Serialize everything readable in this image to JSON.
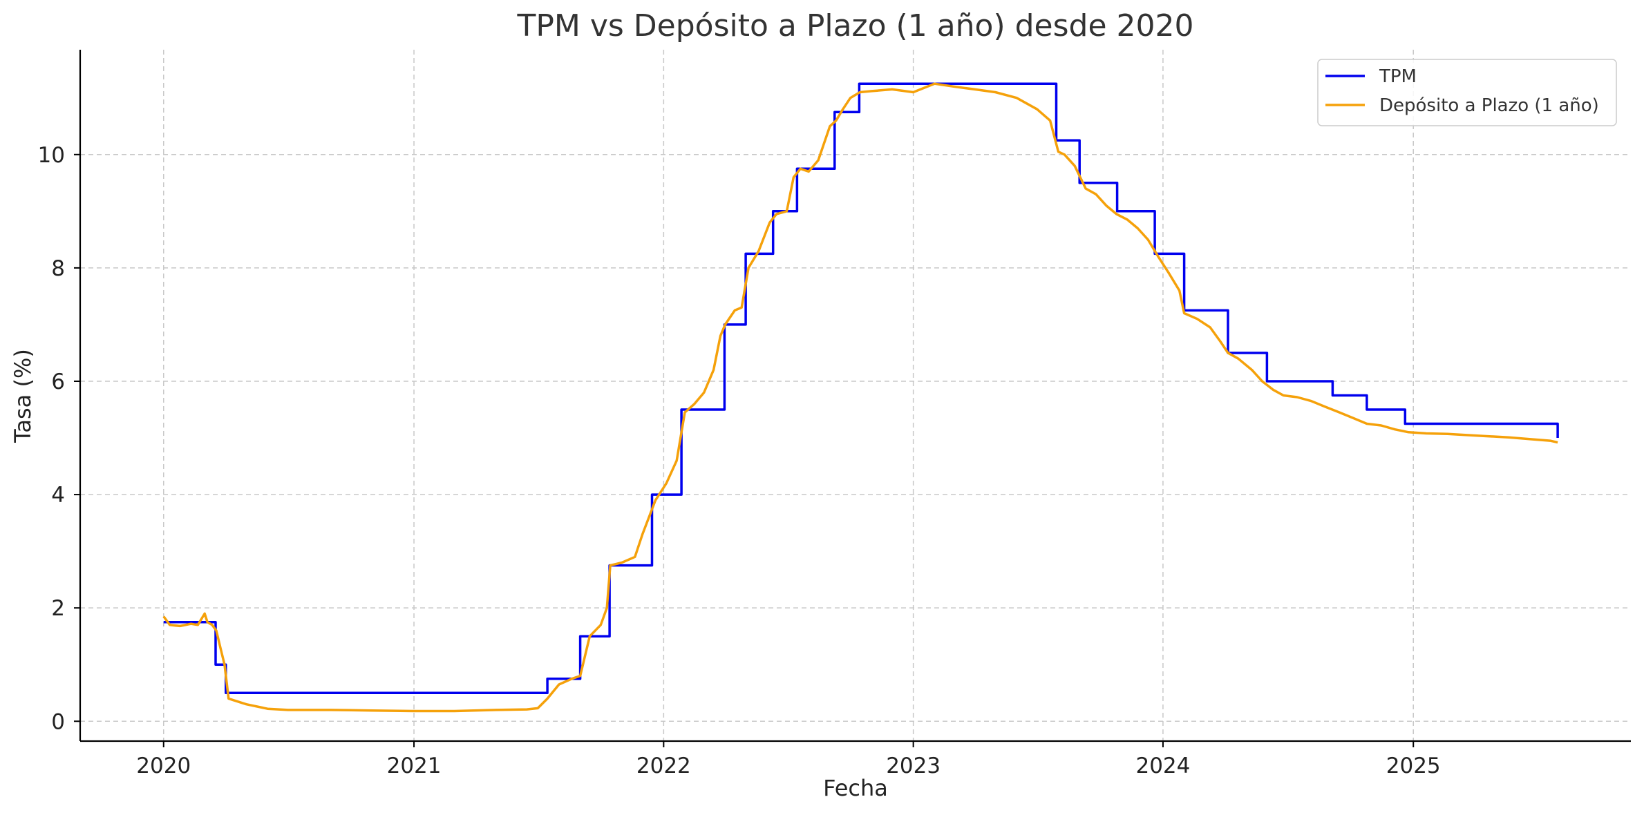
{
  "chart_data": {
    "type": "line",
    "title": "TPM vs Depósito a Plazo (1 año) desde 2020",
    "xlabel": "Fecha",
    "ylabel": "Tasa (%)",
    "xlim": [
      "2019-09-01",
      "2025-11-15"
    ],
    "ylim": [
      -0.35,
      11.85
    ],
    "x_ticks": [
      {
        "date": "2020-01-01",
        "label": "2020"
      },
      {
        "date": "2021-01-01",
        "label": "2021"
      },
      {
        "date": "2022-01-01",
        "label": "2022"
      },
      {
        "date": "2023-01-01",
        "label": "2023"
      },
      {
        "date": "2024-01-01",
        "label": "2024"
      },
      {
        "date": "2025-01-01",
        "label": "2025"
      }
    ],
    "y_ticks": [
      0,
      2,
      4,
      6,
      8,
      10
    ],
    "grid": true,
    "legend_position": "top-right",
    "colors": {
      "tpm": "#0000ee",
      "deposit": "#f5a10a"
    },
    "series": [
      {
        "name": "TPM",
        "color": "#0000ee",
        "step": true,
        "x": [
          "2020-01-01",
          "2020-03-17",
          "2020-04-01",
          "2021-07-15",
          "2021-09-01",
          "2021-10-14",
          "2021-12-15",
          "2022-01-27",
          "2022-03-31",
          "2022-05-01",
          "2022-06-10",
          "2022-07-15",
          "2022-09-08",
          "2022-10-14",
          "2023-07-29",
          "2023-09-01",
          "2023-10-26",
          "2023-12-20",
          "2024-02-01",
          "2024-04-05",
          "2024-06-01",
          "2024-09-05",
          "2024-10-25",
          "2024-12-20",
          "2025-07-31"
        ],
        "y": [
          1.75,
          1.0,
          0.5,
          0.75,
          1.5,
          2.75,
          4.0,
          5.5,
          7.0,
          8.25,
          9.0,
          9.75,
          10.75,
          11.25,
          10.25,
          9.5,
          9.0,
          8.25,
          7.25,
          6.5,
          6.0,
          5.75,
          5.5,
          5.25,
          5.0
        ]
      },
      {
        "name": "Depósito a Plazo (1 año)",
        "color": "#f5a10a",
        "step": false,
        "x": [
          "2020-01-01",
          "2020-01-10",
          "2020-01-25",
          "2020-02-10",
          "2020-02-20",
          "2020-03-01",
          "2020-03-05",
          "2020-03-12",
          "2020-03-18",
          "2020-03-24",
          "2020-03-30",
          "2020-04-05",
          "2020-04-10",
          "2020-05-01",
          "2020-06-01",
          "2020-07-01",
          "2020-09-01",
          "2020-11-01",
          "2021-01-01",
          "2021-03-01",
          "2021-05-01",
          "2021-06-15",
          "2021-07-01",
          "2021-07-15",
          "2021-08-01",
          "2021-08-20",
          "2021-09-01",
          "2021-09-15",
          "2021-10-01",
          "2021-10-10",
          "2021-10-15",
          "2021-11-01",
          "2021-11-20",
          "2021-12-01",
          "2021-12-20",
          "2022-01-05",
          "2022-01-20",
          "2022-02-01",
          "2022-02-15",
          "2022-03-01",
          "2022-03-15",
          "2022-03-25",
          "2022-04-01",
          "2022-04-15",
          "2022-04-25",
          "2022-05-05",
          "2022-05-20",
          "2022-06-05",
          "2022-06-15",
          "2022-06-30",
          "2022-07-10",
          "2022-07-20",
          "2022-08-01",
          "2022-08-15",
          "2022-09-01",
          "2022-09-10",
          "2022-09-20",
          "2022-10-01",
          "2022-10-15",
          "2022-11-01",
          "2022-12-01",
          "2023-01-01",
          "2023-02-01",
          "2023-03-01",
          "2023-04-01",
          "2023-05-01",
          "2023-06-01",
          "2023-07-01",
          "2023-07-20",
          "2023-08-01",
          "2023-08-10",
          "2023-08-25",
          "2023-09-10",
          "2023-09-25",
          "2023-10-10",
          "2023-10-25",
          "2023-11-10",
          "2023-11-25",
          "2023-12-10",
          "2023-12-25",
          "2024-01-10",
          "2024-01-25",
          "2024-02-01",
          "2024-02-20",
          "2024-03-10",
          "2024-03-25",
          "2024-04-05",
          "2024-04-20",
          "2024-05-10",
          "2024-05-25",
          "2024-06-10",
          "2024-06-25",
          "2024-07-15",
          "2024-08-05",
          "2024-08-25",
          "2024-09-15",
          "2024-10-05",
          "2024-10-25",
          "2024-11-15",
          "2024-12-05",
          "2024-12-25",
          "2025-01-20",
          "2025-02-20",
          "2025-03-20",
          "2025-04-20",
          "2025-05-20",
          "2025-06-20",
          "2025-07-20",
          "2025-07-31"
        ],
        "y": [
          1.85,
          1.7,
          1.68,
          1.72,
          1.7,
          1.9,
          1.75,
          1.7,
          1.6,
          1.3,
          1.0,
          0.4,
          0.38,
          0.3,
          0.22,
          0.2,
          0.2,
          0.19,
          0.18,
          0.18,
          0.2,
          0.21,
          0.23,
          0.4,
          0.65,
          0.75,
          0.8,
          1.5,
          1.7,
          2.0,
          2.75,
          2.8,
          2.9,
          3.3,
          3.9,
          4.2,
          4.6,
          5.45,
          5.6,
          5.8,
          6.2,
          6.8,
          7.0,
          7.25,
          7.3,
          8.0,
          8.3,
          8.8,
          8.95,
          9.0,
          9.6,
          9.75,
          9.7,
          9.9,
          10.5,
          10.6,
          10.8,
          11.0,
          11.1,
          11.12,
          11.15,
          11.1,
          11.25,
          11.2,
          11.15,
          11.1,
          11.0,
          10.8,
          10.6,
          10.05,
          10.0,
          9.8,
          9.4,
          9.3,
          9.1,
          8.95,
          8.85,
          8.7,
          8.5,
          8.2,
          7.9,
          7.6,
          7.2,
          7.1,
          6.95,
          6.7,
          6.5,
          6.4,
          6.2,
          6.0,
          5.85,
          5.75,
          5.72,
          5.65,
          5.55,
          5.45,
          5.35,
          5.25,
          5.22,
          5.15,
          5.1,
          5.08,
          5.07,
          5.05,
          5.03,
          5.01,
          4.98,
          4.95,
          4.92
        ]
      }
    ]
  }
}
